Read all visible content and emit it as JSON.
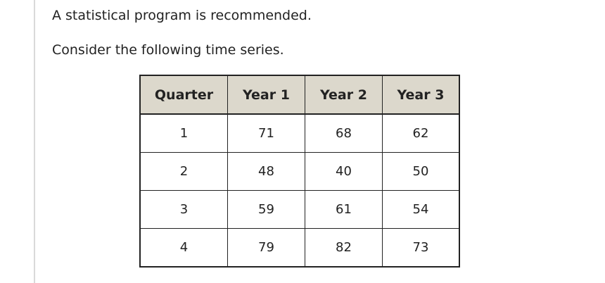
{
  "intro": {
    "line1": "A statistical program is recommended.",
    "line2": "Consider the following time series."
  },
  "table": {
    "headers": [
      "Quarter",
      "Year 1",
      "Year 2",
      "Year 3"
    ],
    "rows": [
      [
        "1",
        "71",
        "68",
        "62"
      ],
      [
        "2",
        "48",
        "40",
        "50"
      ],
      [
        "3",
        "59",
        "61",
        "54"
      ],
      [
        "4",
        "79",
        "82",
        "73"
      ]
    ]
  }
}
